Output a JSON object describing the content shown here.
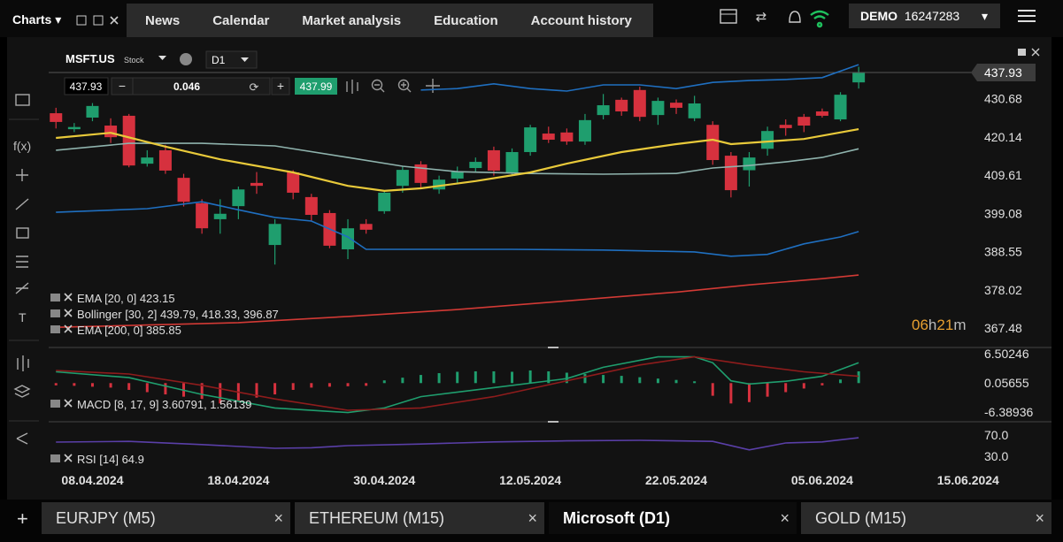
{
  "header": {
    "charts": "Charts",
    "nav": [
      "News",
      "Calendar",
      "Market analysis",
      "Education",
      "Account history"
    ],
    "account": "DEMO",
    "account_id": "16247283"
  },
  "symbol_bar": {
    "symbol": "MSFT.US",
    "kind": "Stock",
    "timeframe": "D1"
  },
  "trade_bar": {
    "sell": "437.93",
    "minus": "−",
    "volume": "0.046",
    "plus": "+",
    "buy": "437.99"
  },
  "toolbar": {
    "fx": "f(x)",
    "text_tool": "T"
  },
  "chart_data": [
    {
      "type": "candlestick",
      "x": [
        0,
        1,
        2,
        3,
        4,
        5,
        6,
        7,
        8,
        9,
        10,
        11,
        12,
        13,
        14,
        15,
        16,
        17,
        18,
        19,
        20,
        21,
        22,
        23,
        24,
        25,
        26,
        27,
        28,
        29,
        30,
        31,
        32,
        33,
        34,
        35,
        36,
        37,
        38,
        39,
        40,
        41,
        42,
        43,
        44
      ],
      "open": [
        426.7,
        422.3,
        425.5,
        423.3,
        426.0,
        412.8,
        416.5,
        408.9,
        401.9,
        397.5,
        401.1,
        407.5,
        390.4,
        410.4,
        403.6,
        399.2,
        389.2,
        396.2,
        399.7,
        406.7,
        412.6,
        405.7,
        408.7,
        411.6,
        416.5,
        410.4,
        416.0,
        421.1,
        421.4,
        418.9,
        426.2,
        430.4,
        433.1,
        426.2,
        429.6,
        425.3,
        423.5,
        415.0,
        411.0,
        416.9,
        423.5,
        425.7,
        427.2,
        425.0,
        435.2
      ],
      "high": [
        428.2,
        424.0,
        429.5,
        425.3,
        426.5,
        416.5,
        418.0,
        410.0,
        403.0,
        403.0,
        406.5,
        410.5,
        397.5,
        411.0,
        404.5,
        400.0,
        397.5,
        397.5,
        405.5,
        412.0,
        413.5,
        409.5,
        412.0,
        414.5,
        417.5,
        417.0,
        423.5,
        423.0,
        422.5,
        426.5,
        432.0,
        431.0,
        434.0,
        431.0,
        430.5,
        431.5,
        424.5,
        416.0,
        416.0,
        423.0,
        425.0,
        426.5,
        428.0,
        432.5,
        439.5
      ],
      "low": [
        422.5,
        421.5,
        424.5,
        418.5,
        411.8,
        412.0,
        410.0,
        401.0,
        393.5,
        393.5,
        397.5,
        404.5,
        385.0,
        403.0,
        397.0,
        389.5,
        386.5,
        393.5,
        399.0,
        404.8,
        406.0,
        404.5,
        407.5,
        410.5,
        409.5,
        409.5,
        415.0,
        418.5,
        418.0,
        418.0,
        425.0,
        426.0,
        424.5,
        423.5,
        426.5,
        424.5,
        412.5,
        403.5,
        406.5,
        415.0,
        420.5,
        421.5,
        425.5,
        424.5,
        433.5
      ],
      "close": [
        424.3,
        422.9,
        428.7,
        420.1,
        412.3,
        414.5,
        410.9,
        402.3,
        395.0,
        399.0,
        405.7,
        406.7,
        396.2,
        404.8,
        398.7,
        390.2,
        395.0,
        394.6,
        404.8,
        411.1,
        407.5,
        408.4,
        410.6,
        413.3,
        410.9,
        416.0,
        422.8,
        419.4,
        418.9,
        424.8,
        428.9,
        427.2,
        425.7,
        430.1,
        428.2,
        429.4,
        413.8,
        405.5,
        414.5,
        421.8,
        422.6,
        423.3,
        426.0,
        431.8,
        437.93
      ],
      "up_color": "#1f9e6e",
      "down_color": "#d6313e",
      "xlim": [
        -0.4,
        50.3
      ],
      "xticks": [
        {
          "value": 2,
          "label": "08.04.2024"
        },
        {
          "value": 10,
          "label": "18.04.2024"
        },
        {
          "value": 18,
          "label": "30.04.2024"
        },
        {
          "value": 26,
          "label": "12.05.2024"
        },
        {
          "value": 34,
          "label": "22.05.2024"
        },
        {
          "value": 42,
          "label": "05.06.2024"
        },
        {
          "value": 50,
          "label": "15.06.2024"
        }
      ],
      "ylim": [
        362.4,
        444.5
      ],
      "yticks": [
        367.48,
        378.02,
        388.55,
        399.08,
        409.61,
        420.14,
        430.68
      ],
      "last_price": 437.93,
      "lines": [
        {
          "color": "#1f6fc0",
          "x": [
            20,
            22,
            24,
            26,
            28,
            30,
            32,
            34,
            36,
            38,
            40,
            42,
            44
          ],
          "values": [
            433.1,
            433.5,
            434.8,
            433.5,
            432.8,
            434.5,
            434.5,
            433.5,
            435.2,
            435.7,
            436.0,
            436.5,
            440.1
          ]
        },
        {
          "color": "#8fb3ad",
          "x": [
            0,
            4,
            8,
            12,
            16,
            19,
            22,
            26,
            30,
            34,
            36,
            38,
            40,
            42,
            44
          ],
          "values": [
            416.5,
            418.4,
            418.4,
            417.7,
            414.5,
            412.1,
            410.6,
            410.1,
            409.9,
            410.1,
            411.6,
            412.3,
            413.3,
            414.5,
            416.9
          ]
        },
        {
          "color": "#1f6fc0",
          "x": [
            0,
            5,
            8,
            10,
            12,
            14,
            16,
            17,
            25,
            30,
            35,
            37,
            39,
            41,
            43,
            44
          ],
          "values": [
            399.4,
            400.4,
            402.3,
            400.1,
            398.0,
            397.0,
            392.6,
            389.2,
            389.2,
            389.0,
            388.5,
            387.3,
            387.8,
            390.7,
            392.6,
            394.1
          ]
        },
        {
          "color": "#e8c93a",
          "x": [
            0,
            3,
            6,
            9,
            13,
            16,
            18,
            20,
            23,
            26,
            28,
            31,
            34,
            36,
            37,
            39,
            41,
            44
          ],
          "values": [
            419.9,
            421.3,
            417.5,
            414.0,
            410.4,
            406.7,
            405.3,
            406.0,
            408.0,
            410.4,
            412.8,
            416.0,
            418.2,
            419.4,
            418.2,
            418.9,
            419.6,
            422.3
          ]
        },
        {
          "color": "#d23a35",
          "x": [
            0,
            10,
            16,
            22,
            28,
            34,
            38,
            42,
            44
          ],
          "values": [
            367.7,
            369.0,
            370.7,
            372.6,
            375.0,
            377.4,
            379.4,
            381.1,
            382.1
          ]
        }
      ],
      "legends": [
        "EMA [20, 0] 423.15",
        "Bollinger [30, 2] 439.79, 418.33, 396.87",
        "EMA [200, 0] 385.85"
      ],
      "timer": {
        "hours": "06",
        "h": "h",
        "minutes": "21",
        "m": "m"
      }
    },
    {
      "type": "macd",
      "x": [
        0,
        1,
        2,
        3,
        4,
        5,
        6,
        7,
        8,
        9,
        10,
        11,
        12,
        13,
        14,
        15,
        16,
        17,
        18,
        19,
        20,
        21,
        22,
        23,
        24,
        25,
        26,
        27,
        28,
        29,
        30,
        31,
        32,
        33,
        34,
        35,
        36,
        37,
        38,
        39,
        40,
        41,
        42,
        43,
        44
      ],
      "values": [
        -0.5,
        -0.6,
        -0.8,
        -1.0,
        -1.5,
        -2.0,
        -2.5,
        -3.0,
        -3.5,
        -4.5,
        -4.0,
        -3.2,
        -2.5,
        -1.5,
        -1.0,
        -0.8,
        -0.7,
        -0.6,
        0.6,
        1.2,
        1.8,
        2.2,
        2.5,
        2.6,
        2.6,
        2.5,
        2.8,
        2.6,
        2.3,
        2.0,
        1.8,
        1.6,
        1.3,
        1.0,
        0.7,
        0.4,
        -2.8,
        -4.5,
        -4.2,
        -3.0,
        -2.0,
        -1.2,
        -0.5,
        0.8,
        2.6
      ],
      "up_color": "#1f9e6e",
      "down_color": "#d6313e",
      "xlim": [
        -0.4,
        50.3
      ],
      "ylim": [
        -8.54,
        7.87
      ],
      "yticks": [
        -6.38936,
        0.05655,
        6.50246
      ],
      "lines": [
        {
          "color": "#1f9e6e",
          "x": [
            0,
            4,
            8,
            12,
            16,
            18,
            20,
            24,
            28,
            30,
            33,
            35,
            36,
            37,
            38,
            40,
            42,
            44
          ],
          "values": [
            2.5,
            1.2,
            -2.5,
            -5.5,
            -6.5,
            -5.5,
            -3.0,
            -1.0,
            1.0,
            3.5,
            5.8,
            5.8,
            4.5,
            0.5,
            -0.2,
            0.4,
            1.5,
            4.5
          ]
        },
        {
          "color": "#8e1c1c",
          "x": [
            0,
            4,
            8,
            12,
            16,
            20,
            24,
            28,
            32,
            35,
            38,
            41,
            44
          ],
          "values": [
            2.8,
            2.0,
            -0.5,
            -3.5,
            -6.0,
            -5.5,
            -3.0,
            0.5,
            4.0,
            5.8,
            4.0,
            2.5,
            1.5
          ]
        }
      ],
      "legends": [
        "MACD [8, 17, 9] 3.60791, 1.56139"
      ]
    },
    {
      "type": "line",
      "xlim": [
        -0.4,
        50.3
      ],
      "ylim": [
        3.3,
        90
      ],
      "yticks": [
        {
          "value": 30,
          "label": "30.0"
        },
        {
          "value": 70,
          "label": "70.0"
        }
      ],
      "lines": [
        {
          "color": "#5a3fa8",
          "x": [
            0,
            4,
            8,
            12,
            14,
            16,
            20,
            24,
            28,
            32,
            36,
            38,
            40,
            42,
            44
          ],
          "values": [
            56.7,
            58,
            52,
            45,
            46,
            50,
            53,
            57,
            59,
            60,
            58,
            42,
            55,
            57,
            64.9
          ]
        }
      ],
      "legends": [
        "RSI [14] 64.9"
      ]
    }
  ],
  "tabs": {
    "add": "+",
    "items": [
      "EURJPY (M5)",
      "ETHEREUM (M15)",
      "Microsoft (D1)",
      "GOLD (M15)"
    ]
  }
}
